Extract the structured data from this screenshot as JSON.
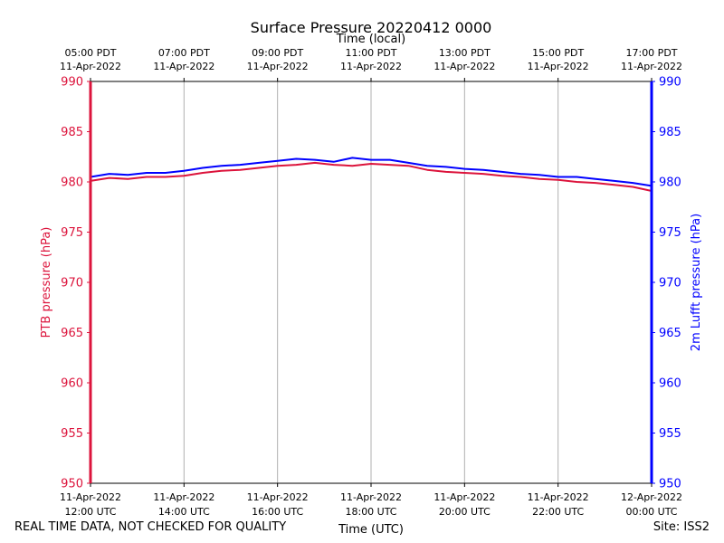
{
  "title": "Surface Pressure 20220412 0000",
  "footer_note": "REAL TIME DATA, NOT CHECKED FOR QUALITY",
  "site_label": "Site: ISS2",
  "colors": {
    "left_axis": "#dc143c",
    "right_axis": "#0000ff",
    "grid": "#b0b0b0",
    "frame": "#000000"
  },
  "chart_data": {
    "type": "line",
    "title": "Surface Pressure 20220412 0000",
    "xlabel": "Time (UTC)",
    "x2label": "Time (local)",
    "ylabel": "PTB pressure (hPa)",
    "y2label": "2m Lufft pressure (hPa)",
    "xlim": [
      0,
      12
    ],
    "ylim": [
      950,
      990
    ],
    "y2lim": [
      950,
      990
    ],
    "y_ticks": [
      950,
      955,
      960,
      965,
      970,
      975,
      980,
      985,
      990
    ],
    "x_ticks": [
      {
        "pos": 0,
        "line1": "11-Apr-2022",
        "line2": "12:00 UTC"
      },
      {
        "pos": 2,
        "line1": "11-Apr-2022",
        "line2": "14:00 UTC"
      },
      {
        "pos": 4,
        "line1": "11-Apr-2022",
        "line2": "16:00 UTC"
      },
      {
        "pos": 6,
        "line1": "11-Apr-2022",
        "line2": "18:00 UTC"
      },
      {
        "pos": 8,
        "line1": "11-Apr-2022",
        "line2": "20:00 UTC"
      },
      {
        "pos": 10,
        "line1": "11-Apr-2022",
        "line2": "22:00 UTC"
      },
      {
        "pos": 12,
        "line1": "12-Apr-2022",
        "line2": "00:00 UTC"
      }
    ],
    "x2_ticks": [
      {
        "pos": 0,
        "line1": "05:00 PDT",
        "line2": "11-Apr-2022"
      },
      {
        "pos": 2,
        "line1": "07:00 PDT",
        "line2": "11-Apr-2022"
      },
      {
        "pos": 4,
        "line1": "09:00 PDT",
        "line2": "11-Apr-2022"
      },
      {
        "pos": 6,
        "line1": "11:00 PDT",
        "line2": "11-Apr-2022"
      },
      {
        "pos": 8,
        "line1": "13:00 PDT",
        "line2": "11-Apr-2022"
      },
      {
        "pos": 10,
        "line1": "15:00 PDT",
        "line2": "11-Apr-2022"
      },
      {
        "pos": 12,
        "line1": "17:00 PDT",
        "line2": "11-Apr-2022"
      }
    ],
    "series": [
      {
        "name": "PTB pressure",
        "axis": "left",
        "color": "#dc143c",
        "x": [
          0,
          0.4,
          0.8,
          1.2,
          1.6,
          2.0,
          2.4,
          2.8,
          3.2,
          3.6,
          4.0,
          4.4,
          4.8,
          5.2,
          5.6,
          6.0,
          6.4,
          6.8,
          7.2,
          7.6,
          8.0,
          8.4,
          8.8,
          9.2,
          9.6,
          10.0,
          10.4,
          10.8,
          11.2,
          11.6,
          12.0
        ],
        "values": [
          980.1,
          980.4,
          980.3,
          980.5,
          980.5,
          980.6,
          980.9,
          981.1,
          981.2,
          981.4,
          981.6,
          981.7,
          981.9,
          981.7,
          981.6,
          981.8,
          981.7,
          981.6,
          981.2,
          981.0,
          980.9,
          980.8,
          980.6,
          980.5,
          980.3,
          980.2,
          980.0,
          979.9,
          979.7,
          979.5,
          979.1
        ]
      },
      {
        "name": "2m Lufft pressure",
        "axis": "right",
        "color": "#0000ff",
        "x": [
          0,
          0.4,
          0.8,
          1.2,
          1.6,
          2.0,
          2.4,
          2.8,
          3.2,
          3.6,
          4.0,
          4.4,
          4.8,
          5.2,
          5.6,
          6.0,
          6.4,
          6.8,
          7.2,
          7.6,
          8.0,
          8.4,
          8.8,
          9.2,
          9.6,
          10.0,
          10.4,
          10.8,
          11.2,
          11.6,
          12.0
        ],
        "values": [
          980.5,
          980.8,
          980.7,
          980.9,
          980.9,
          981.1,
          981.4,
          981.6,
          981.7,
          981.9,
          982.1,
          982.3,
          982.2,
          982.0,
          982.4,
          982.2,
          982.2,
          981.9,
          981.6,
          981.5,
          981.3,
          981.2,
          981.0,
          980.8,
          980.7,
          980.5,
          980.5,
          980.3,
          980.1,
          979.9,
          979.6
        ]
      }
    ]
  }
}
